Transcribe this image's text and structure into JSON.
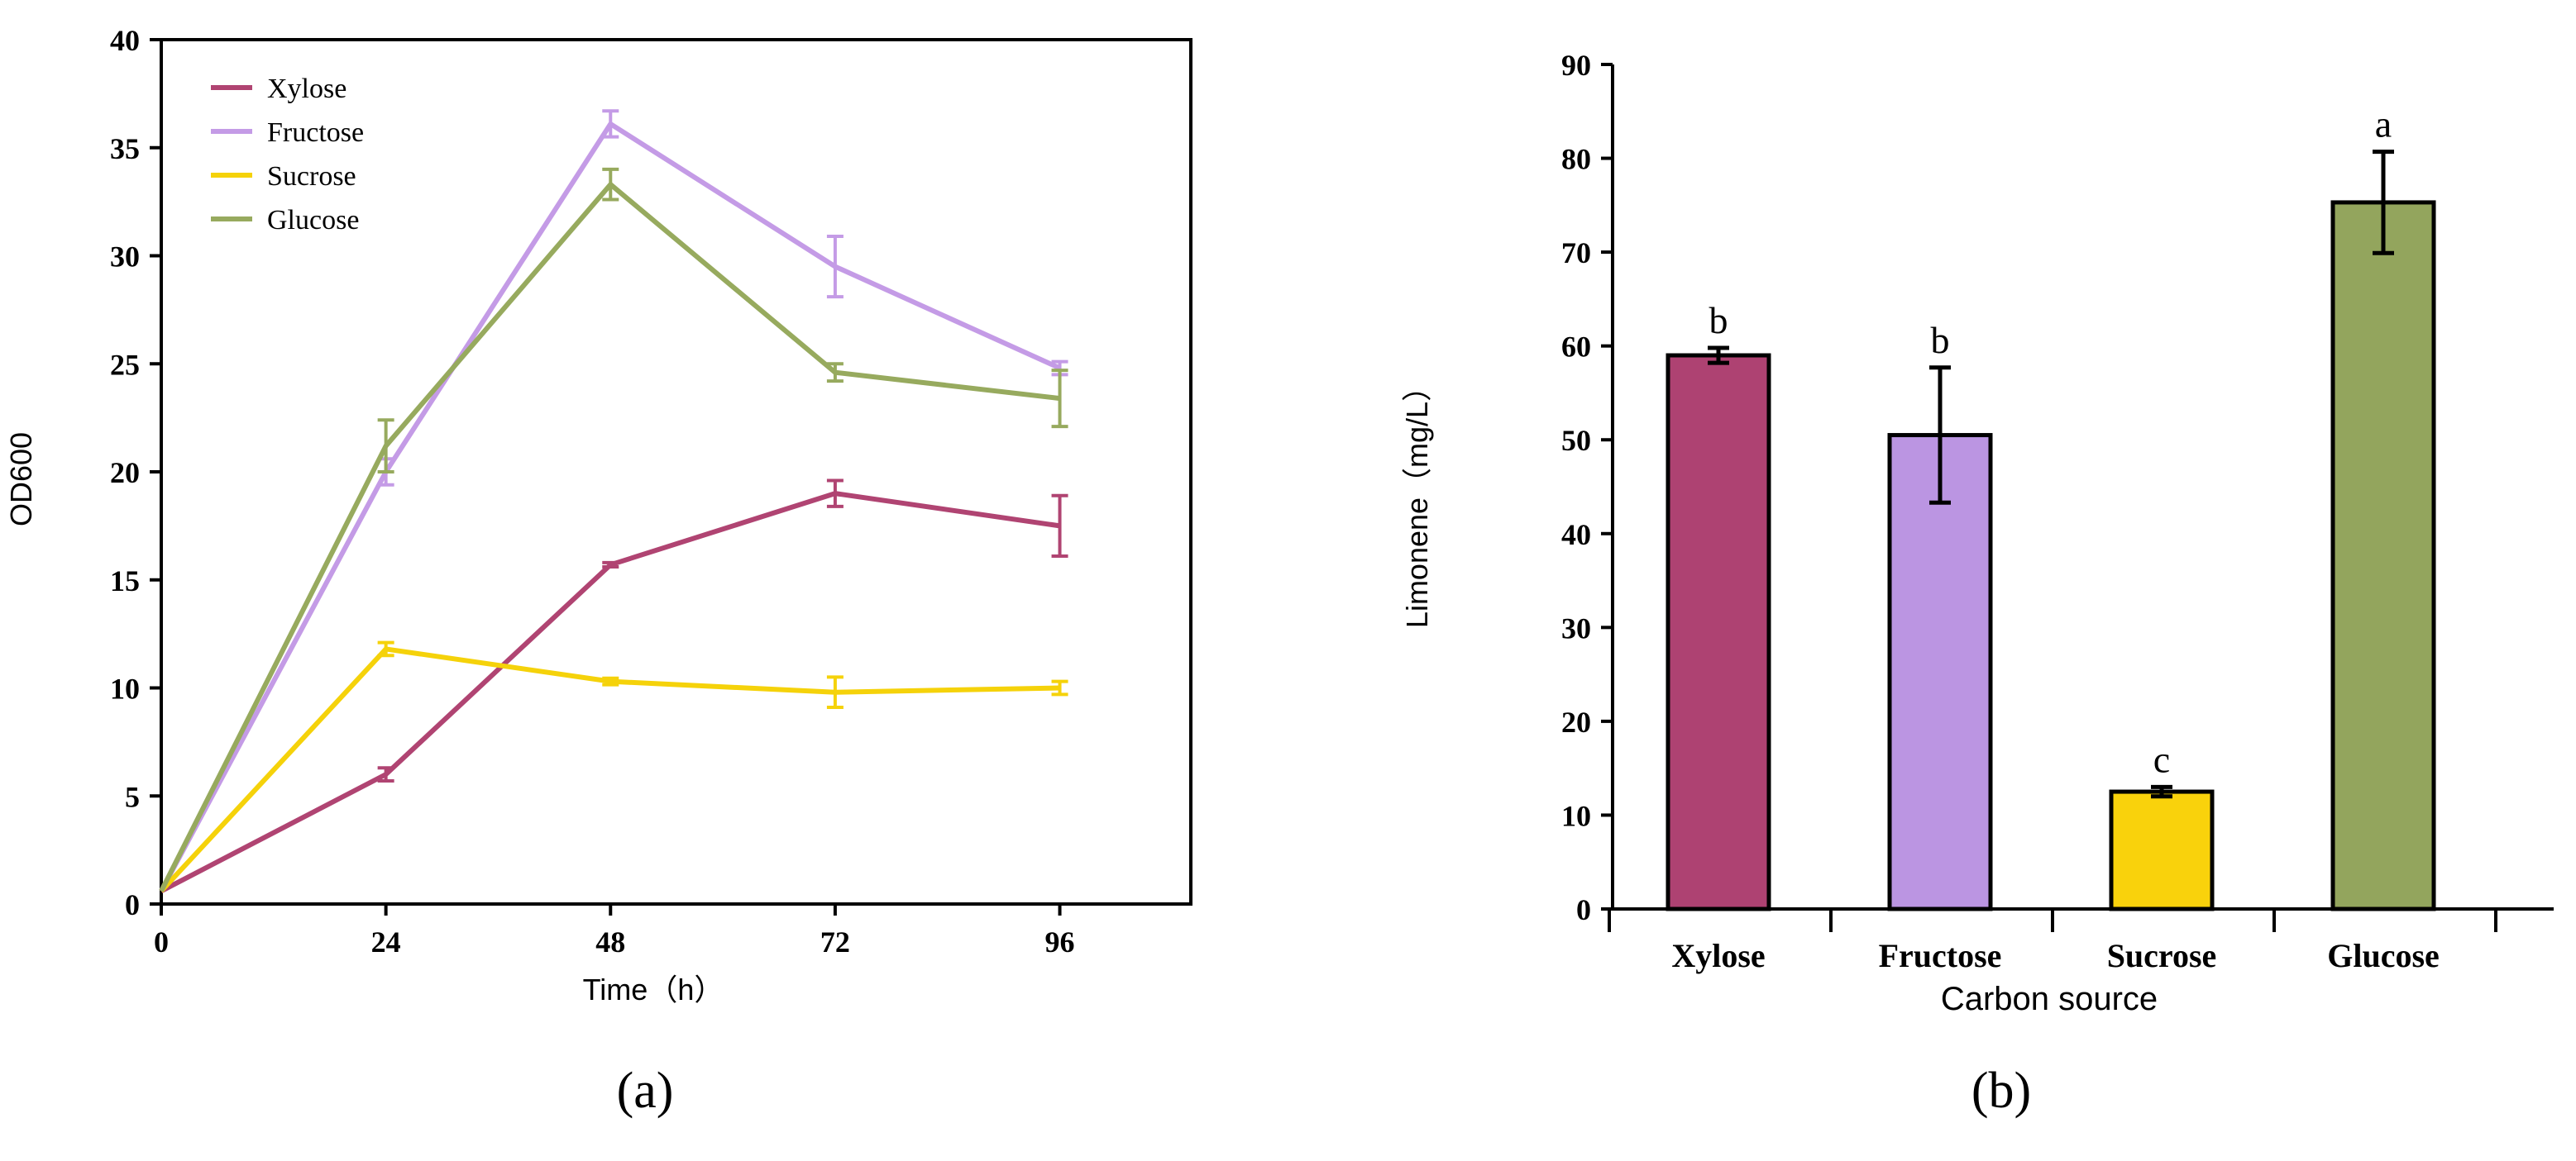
{
  "chart_data": [
    {
      "type": "line",
      "panel_label": "(a)",
      "title": "",
      "xlabel": "Time（h）",
      "ylabel": "OD600",
      "x": [
        0,
        24,
        48,
        72,
        96
      ],
      "xticks": [
        "0",
        "24",
        "48",
        "72",
        "96"
      ],
      "xlim": [
        0,
        110
      ],
      "ylim": [
        0,
        40
      ],
      "yticks": [
        "0",
        "5",
        "10",
        "15",
        "20",
        "25",
        "30",
        "35",
        "40"
      ],
      "grid": false,
      "legend_position": "top-left",
      "series": [
        {
          "name": "Xylose",
          "color": "#b04472",
          "values": [
            0.6,
            6.0,
            15.7,
            19.0,
            17.5
          ],
          "errors": [
            0.1,
            0.3,
            0.1,
            0.6,
            1.4
          ]
        },
        {
          "name": "Fructose",
          "color": "#c49be6",
          "values": [
            0.6,
            20.0,
            36.1,
            29.5,
            24.8
          ],
          "errors": [
            0.1,
            0.6,
            0.6,
            1.4,
            0.3
          ]
        },
        {
          "name": "Sucrose",
          "color": "#f5d20a",
          "values": [
            0.6,
            11.8,
            10.3,
            9.8,
            10.0
          ],
          "errors": [
            0.1,
            0.3,
            0.15,
            0.7,
            0.3
          ]
        },
        {
          "name": "Glucose",
          "color": "#97aa5e",
          "values": [
            0.6,
            21.2,
            33.3,
            24.6,
            23.4
          ],
          "errors": [
            0.1,
            1.2,
            0.7,
            0.4,
            1.3
          ]
        }
      ]
    },
    {
      "type": "bar",
      "panel_label": "(b)",
      "title": "",
      "xlabel": "Carbon source",
      "ylabel": "Limonene（mg/L）",
      "ylim": [
        0,
        90
      ],
      "yticks": [
        "0",
        "10",
        "20",
        "30",
        "40",
        "50",
        "60",
        "70",
        "80",
        "90"
      ],
      "grid": false,
      "categories": [
        "Xylose",
        "Fructose",
        "Sucrose",
        "Glucose"
      ],
      "values": [
        59.0,
        50.5,
        12.5,
        75.3
      ],
      "errors": [
        0.8,
        7.2,
        0.5,
        5.4
      ],
      "significance": [
        "b",
        "b",
        "c",
        "a"
      ],
      "colors": [
        "#ae4272",
        "#bb95e2",
        "#f9d20c",
        "#93a55d"
      ]
    }
  ]
}
